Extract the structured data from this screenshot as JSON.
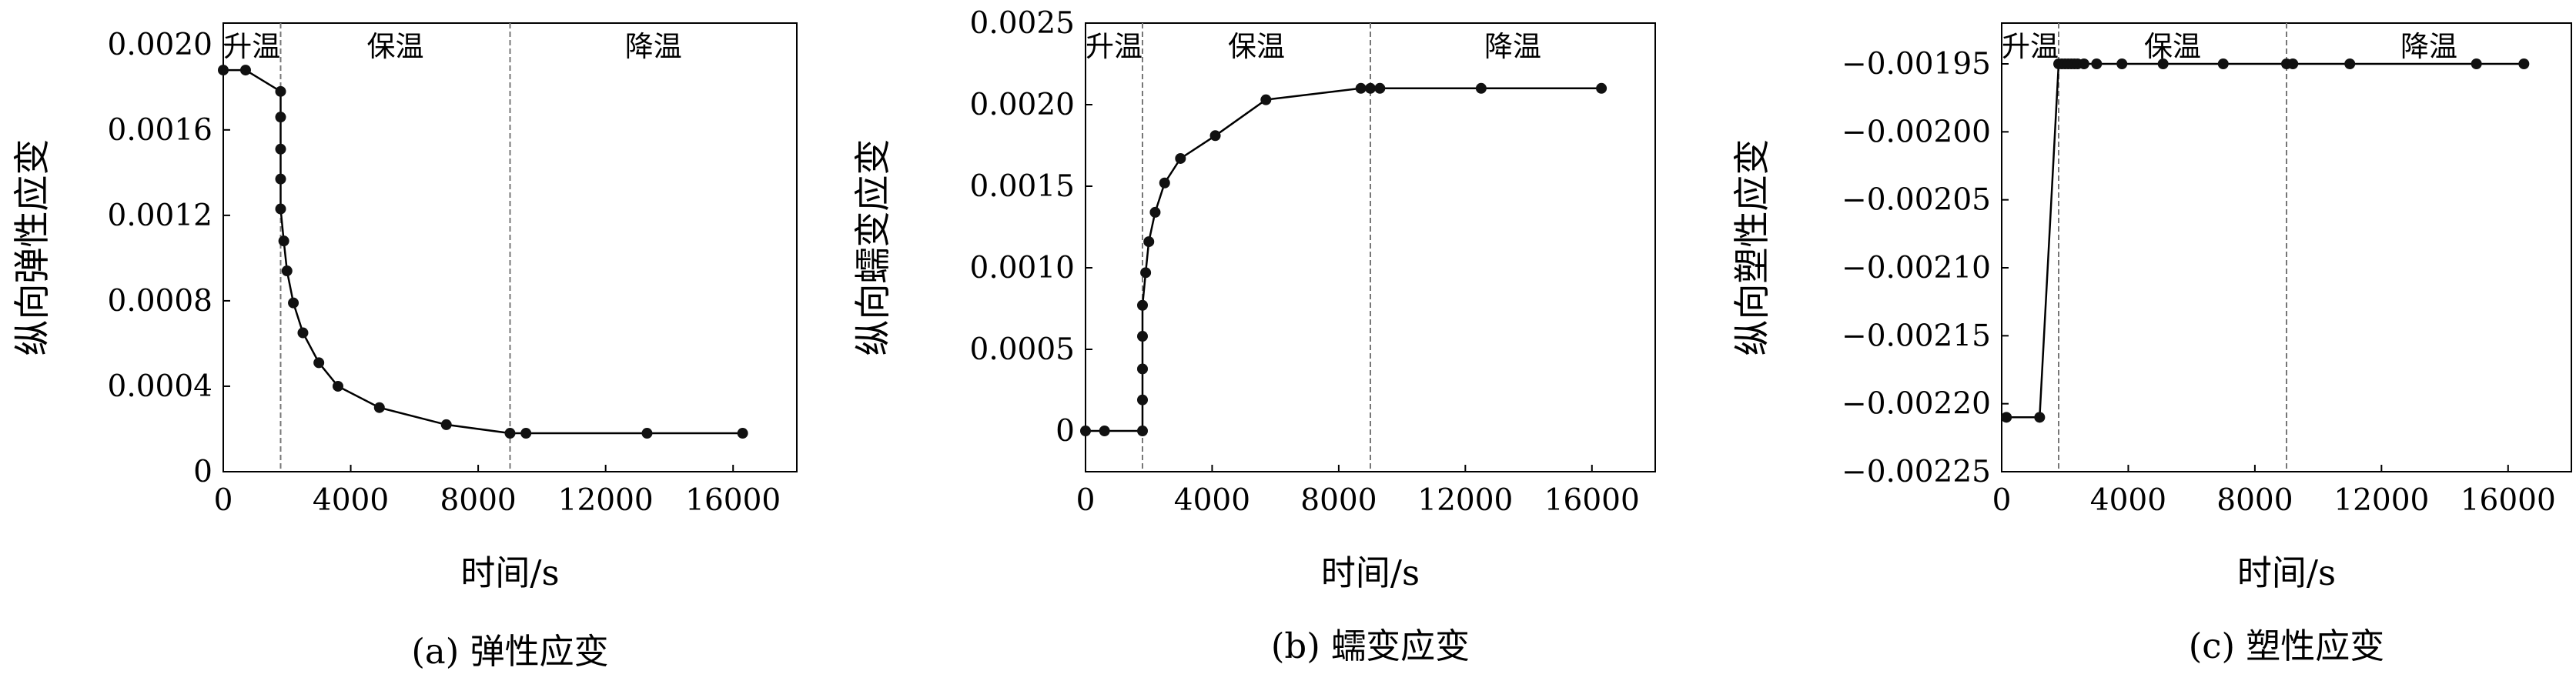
{
  "chart_data": [
    {
      "type": "line",
      "caption": "(a) 弹性应变",
      "xlabel": "时间/s",
      "ylabel": "纵向弹性应变",
      "xlim": [
        0,
        18000
      ],
      "ylim": [
        0,
        0.0021
      ],
      "xticks": [
        "0",
        "4000",
        "8000",
        "12000",
        "16000"
      ],
      "xtick_values": [
        0,
        4000,
        8000,
        12000,
        16000
      ],
      "yticks": [
        "0",
        "0.0004",
        "0.0008",
        "0.0012",
        "0.0016",
        "0.0020"
      ],
      "ytick_values": [
        0,
        0.0004,
        0.0008,
        0.0012,
        0.0016,
        0.002
      ],
      "phases": [
        {
          "label": "升温",
          "x": 0
        },
        {
          "label": "保温",
          "x": 1800
        },
        {
          "label": "降温",
          "x": 9000
        }
      ],
      "vlines": [
        1800,
        9000
      ],
      "series": [
        {
          "x": [
            0,
            700,
            1800,
            1800,
            1800,
            1800,
            1800,
            1900,
            2000,
            2200,
            2500,
            3000,
            3600,
            4900,
            7000,
            9000,
            9500,
            13300,
            16300
          ],
          "y": [
            0.00188,
            0.00188,
            0.00178,
            0.00166,
            0.00151,
            0.00137,
            0.00123,
            0.00108,
            0.00094,
            0.00079,
            0.00065,
            0.00051,
            0.0004,
            0.0003,
            0.00022,
            0.00018,
            0.00018,
            0.00018,
            0.00018
          ]
        }
      ]
    },
    {
      "type": "line",
      "caption": "(b) 蠕变应变",
      "xlabel": "时间/s",
      "ylabel": "纵向蠕变应变",
      "xlim": [
        0,
        18000
      ],
      "ylim": [
        -0.00025,
        0.0025
      ],
      "xticks": [
        "0",
        "4000",
        "8000",
        "12000",
        "16000"
      ],
      "xtick_values": [
        0,
        4000,
        8000,
        12000,
        16000
      ],
      "yticks": [
        "0",
        "0.0005",
        "0.0010",
        "0.0015",
        "0.0020",
        "0.0025"
      ],
      "ytick_values": [
        0,
        0.0005,
        0.001,
        0.0015,
        0.002,
        0.0025
      ],
      "phases": [
        {
          "label": "升温",
          "x": 0
        },
        {
          "label": "保温",
          "x": 1800
        },
        {
          "label": "降温",
          "x": 9000
        }
      ],
      "vlines": [
        1800,
        9000
      ],
      "series": [
        {
          "x": [
            0,
            600,
            1800,
            1800,
            1800,
            1800,
            1800,
            1900,
            2000,
            2200,
            2500,
            3000,
            4100,
            5700,
            8700,
            9000,
            9300,
            12500,
            16300
          ],
          "y": [
            0,
            0,
            0,
            0.00019,
            0.00038,
            0.00058,
            0.00077,
            0.00097,
            0.00116,
            0.00134,
            0.00152,
            0.00167,
            0.00181,
            0.00203,
            0.0021,
            0.0021,
            0.0021,
            0.0021,
            0.0021
          ]
        }
      ]
    },
    {
      "type": "line",
      "caption": "(c) 塑性应变",
      "xlabel": "时间/s",
      "ylabel": "纵向塑性应变",
      "xlim": [
        0,
        18000
      ],
      "ylim": [
        -0.00225,
        -0.00192
      ],
      "xticks": [
        "0",
        "4000",
        "8000",
        "12000",
        "16000"
      ],
      "xtick_values": [
        0,
        4000,
        8000,
        12000,
        16000
      ],
      "yticks": [
        "−0.00225",
        "−0.00220",
        "−0.00215",
        "−0.00210",
        "−0.00205",
        "−0.00200",
        "−0.00195"
      ],
      "ytick_values": [
        -0.00225,
        -0.0022,
        -0.00215,
        -0.0021,
        -0.00205,
        -0.002,
        -0.00195
      ],
      "phases": [
        {
          "label": "升温",
          "x": 0
        },
        {
          "label": "保温",
          "x": 1800
        },
        {
          "label": "降温",
          "x": 9000
        }
      ],
      "vlines": [
        1800,
        9000
      ],
      "series": [
        {
          "x": [
            150,
            1200,
            1800,
            1900,
            2000,
            2100,
            2200,
            2300,
            2400,
            2600,
            3000,
            3800,
            5100,
            7000,
            9000,
            9200,
            11000,
            15000,
            16500
          ],
          "y": [
            -0.00221,
            -0.00221,
            -0.00195,
            -0.00195,
            -0.00195,
            -0.00195,
            -0.00195,
            -0.00195,
            -0.00195,
            -0.00195,
            -0.00195,
            -0.00195,
            -0.00195,
            -0.00195,
            -0.00195,
            -0.00195,
            -0.00195,
            -0.00195,
            -0.00195
          ]
        }
      ]
    }
  ]
}
